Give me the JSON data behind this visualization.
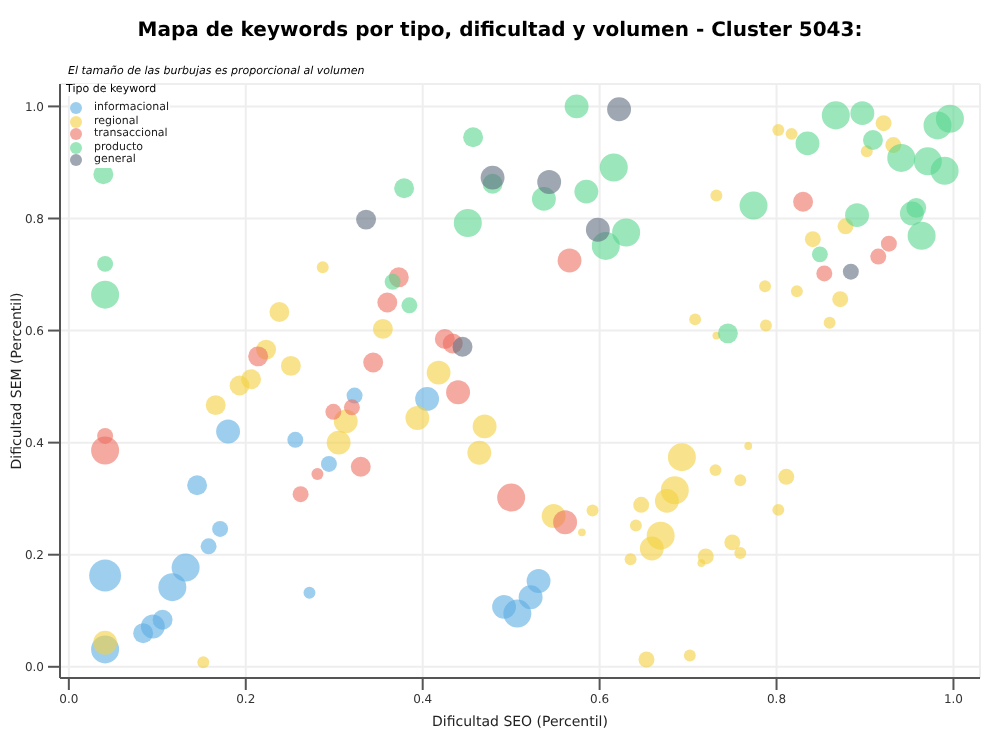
{
  "chart_data": {
    "type": "bubble",
    "title": "Mapa de keywords por tipo, dificultad y volumen - Cluster 5043:",
    "xlabel": "Dificultad SEO (Percentil)",
    "ylabel": "Dificultad SEM (Percentil)",
    "legend_title": "Tipo de keyword",
    "annotations": [
      "El tamaño de las burbujas es proporcional al volumen"
    ],
    "xlim": [
      -0.01,
      1.03
    ],
    "ylim": [
      -0.02,
      1.04
    ],
    "xticks": [
      {
        "value": 0,
        "label": "0.0"
      },
      0.2,
      0.4,
      0.6,
      0.8,
      {
        "value": 1,
        "label": "1.0"
      }
    ],
    "yticks": [
      {
        "value": 0,
        "label": "0.0"
      },
      0.2,
      0.4,
      0.6,
      0.8,
      {
        "value": 1,
        "label": "1.0"
      }
    ],
    "grid": true,
    "legend": "top left",
    "marker": "circle",
    "series": [
      {
        "name": "informacional",
        "color": "#5dade2",
        "x": [
          0.041,
          0.041,
          0.084,
          0.095,
          0.106,
          0.117,
          0.132,
          0.158,
          0.171,
          0.145,
          0.18,
          0.256,
          0.294,
          0.323,
          0.272,
          0.405,
          0.492,
          0.507,
          0.522,
          0.531
        ],
        "values": [
          0.163,
          0.031,
          0.06,
          0.072,
          0.084,
          0.142,
          0.177,
          0.215,
          0.246,
          0.324,
          0.42,
          0.405,
          0.362,
          0.484,
          0.132,
          0.478,
          0.107,
          0.095,
          0.124,
          0.153
        ],
        "sizes": [
          1,
          0.77,
          0.39,
          0.56,
          0.39,
          0.77,
          0.77,
          0.25,
          0.25,
          0.39,
          0.56,
          0.25,
          0.25,
          0.25,
          0.14,
          0.56,
          0.56,
          0.77,
          0.56,
          0.56
        ]
      },
      {
        "name": "regional",
        "color": "#f4d03f",
        "x": [
          0.041,
          0.152,
          0.166,
          0.193,
          0.206,
          0.251,
          0.305,
          0.313,
          0.394,
          0.47,
          0.464,
          0.418,
          0.355,
          0.238,
          0.223,
          0.287,
          0.693,
          0.685,
          0.676,
          0.669,
          0.659,
          0.548,
          0.592,
          0.58,
          0.647,
          0.641,
          0.635,
          0.72,
          0.715,
          0.75,
          0.759,
          0.731,
          0.759,
          0.768,
          0.811,
          0.802,
          0.653,
          0.702,
          0.802,
          0.817,
          0.921,
          0.932,
          0.902,
          0.732,
          0.841,
          0.878,
          0.787,
          0.823,
          0.872,
          0.708,
          0.788,
          0.86,
          0.732
        ],
        "values": [
          0.043,
          0.008,
          0.467,
          0.502,
          0.513,
          0.537,
          0.4,
          0.438,
          0.444,
          0.429,
          0.382,
          0.525,
          0.603,
          0.633,
          0.566,
          0.713,
          0.374,
          0.315,
          0.296,
          0.234,
          0.211,
          0.269,
          0.279,
          0.24,
          0.289,
          0.252,
          0.192,
          0.197,
          0.185,
          0.222,
          0.203,
          0.351,
          0.333,
          0.394,
          0.339,
          0.28,
          0.013,
          0.02,
          0.958,
          0.951,
          0.97,
          0.931,
          0.92,
          0.841,
          0.763,
          0.786,
          0.679,
          0.67,
          0.656,
          0.62,
          0.609,
          0.614,
          0.591
        ],
        "sizes": [
          0.56,
          0.14,
          0.39,
          0.39,
          0.39,
          0.39,
          0.56,
          0.56,
          0.56,
          0.56,
          0.56,
          0.56,
          0.39,
          0.39,
          0.39,
          0.14,
          0.77,
          0.77,
          0.56,
          0.77,
          0.56,
          0.56,
          0.14,
          0.06,
          0.25,
          0.14,
          0.14,
          0.25,
          0.06,
          0.25,
          0.14,
          0.14,
          0.14,
          0.06,
          0.25,
          0.14,
          0.25,
          0.14,
          0.14,
          0.14,
          0.25,
          0.25,
          0.14,
          0.14,
          0.25,
          0.25,
          0.14,
          0.14,
          0.25,
          0.14,
          0.14,
          0.14,
          0.06
        ]
      },
      {
        "name": "transaccional",
        "color": "#ec7063",
        "x": [
          0.041,
          0.041,
          0.262,
          0.281,
          0.33,
          0.299,
          0.32,
          0.44,
          0.5,
          0.344,
          0.214,
          0.36,
          0.373,
          0.425,
          0.434,
          0.561,
          0.566,
          0.83,
          0.854,
          0.915,
          0.927
        ],
        "values": [
          0.386,
          0.412,
          0.308,
          0.344,
          0.357,
          0.455,
          0.463,
          0.49,
          0.302,
          0.543,
          0.554,
          0.65,
          0.695,
          0.585,
          0.577,
          0.258,
          0.725,
          0.83,
          0.702,
          0.732,
          0.755
        ],
        "sizes": [
          0.77,
          0.25,
          0.25,
          0.14,
          0.39,
          0.25,
          0.25,
          0.56,
          0.77,
          0.39,
          0.39,
          0.39,
          0.39,
          0.39,
          0.39,
          0.56,
          0.56,
          0.39,
          0.25,
          0.25,
          0.25
        ]
      },
      {
        "name": "producto",
        "color": "#58d68d",
        "x": [
          0.039,
          0.041,
          0.041,
          0.457,
          0.379,
          0.451,
          0.479,
          0.366,
          0.385,
          0.574,
          0.616,
          0.585,
          0.537,
          0.63,
          0.607,
          0.774,
          0.867,
          0.897,
          0.835,
          0.909,
          0.941,
          0.982,
          0.996,
          0.971,
          0.99,
          0.891,
          0.953,
          0.958,
          0.964,
          0.849,
          0.745
        ],
        "values": [
          0.879,
          0.719,
          0.664,
          0.945,
          0.854,
          0.792,
          0.862,
          0.687,
          0.645,
          1.0,
          0.891,
          0.848,
          0.835,
          0.775,
          0.751,
          0.823,
          0.984,
          0.988,
          0.934,
          0.94,
          0.908,
          0.966,
          0.978,
          0.902,
          0.885,
          0.806,
          0.809,
          0.819,
          0.769,
          0.736,
          0.595
        ],
        "sizes": [
          0.39,
          0.25,
          0.77,
          0.39,
          0.39,
          0.77,
          0.39,
          0.25,
          0.25,
          0.56,
          0.77,
          0.56,
          0.56,
          0.77,
          0.77,
          0.77,
          0.77,
          0.56,
          0.56,
          0.39,
          0.77,
          0.77,
          0.77,
          0.77,
          0.77,
          0.56,
          0.56,
          0.39,
          0.77,
          0.25,
          0.39
        ]
      },
      {
        "name": "general",
        "color": "#5d6d7e",
        "x": [
          0.622,
          0.479,
          0.543,
          0.598,
          0.884,
          0.336,
          0.445
        ],
        "values": [
          0.995,
          0.873,
          0.865,
          0.78,
          0.705,
          0.798,
          0.571
        ],
        "sizes": [
          0.56,
          0.56,
          0.56,
          0.56,
          0.25,
          0.39,
          0.39
        ]
      }
    ]
  }
}
